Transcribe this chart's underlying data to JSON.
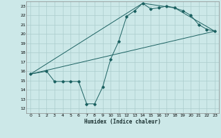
{
  "xlabel": "Humidex (Indice chaleur)",
  "bg_color": "#cce8e8",
  "grid_color": "#aacccc",
  "line_color": "#1a6060",
  "xlim": [
    -0.5,
    23.5
  ],
  "ylim": [
    11.5,
    23.5
  ],
  "xticks": [
    0,
    1,
    2,
    3,
    4,
    5,
    6,
    7,
    8,
    9,
    10,
    11,
    12,
    13,
    14,
    15,
    16,
    17,
    18,
    19,
    20,
    21,
    22,
    23
  ],
  "yticks": [
    12,
    13,
    14,
    15,
    16,
    17,
    18,
    19,
    20,
    21,
    22,
    23
  ],
  "line1_x": [
    0,
    2,
    3,
    4,
    5,
    6,
    7,
    8,
    9,
    10,
    11,
    12,
    13,
    14,
    15,
    16,
    17,
    18,
    19,
    20,
    21,
    22,
    23
  ],
  "line1_y": [
    15.7,
    16.0,
    14.9,
    14.9,
    14.9,
    14.9,
    12.5,
    12.5,
    14.3,
    17.3,
    19.2,
    21.9,
    22.5,
    23.3,
    22.7,
    22.8,
    23.0,
    22.8,
    22.5,
    22.0,
    21.0,
    20.5,
    20.3
  ],
  "line2_x": [
    0,
    2,
    23
  ],
  "line2_y": [
    15.7,
    16.1,
    20.3
  ],
  "line3_x": [
    0,
    14,
    18,
    23
  ],
  "line3_y": [
    15.7,
    23.3,
    22.8,
    20.3
  ]
}
